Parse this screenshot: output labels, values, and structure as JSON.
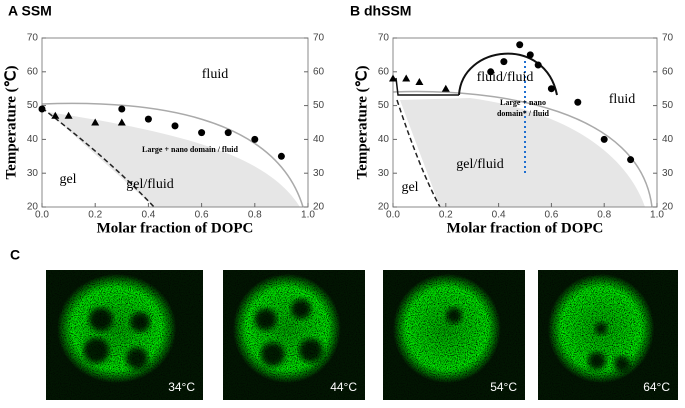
{
  "chart_data": [
    {
      "type": "scatter",
      "title": "A SSM",
      "x_label": "Molar fraction of DOPC",
      "y_label": "Temperature (℃)",
      "xlim": [
        0,
        1
      ],
      "xticks": [
        {
          "value": 0,
          "label": "0.0"
        },
        {
          "value": 0.2,
          "label": "0.2"
        },
        {
          "value": 0.4,
          "label": "0.4"
        },
        {
          "value": 0.6,
          "label": "0.6"
        },
        {
          "value": 0.8,
          "label": "0.8"
        },
        {
          "value": 1,
          "label": "1.0"
        }
      ],
      "ylim": [
        20,
        70
      ],
      "yticks": [
        20,
        30,
        40,
        50,
        60,
        70
      ],
      "y2lim": [
        20,
        70
      ],
      "y2ticks": [
        20,
        30,
        40,
        50,
        60,
        70
      ],
      "series": [
        {
          "marker": "circle",
          "color": "#000000",
          "x": [
            0,
            0.3,
            0.4,
            0.5,
            0.6,
            0.7,
            0.8,
            0.9
          ],
          "values": [
            49,
            49,
            46,
            44,
            42,
            42,
            40,
            35
          ]
        },
        {
          "marker": "triangle",
          "color": "#000000",
          "x": [
            0.05,
            0.1,
            0.2,
            0.3
          ],
          "values": [
            47,
            47,
            45,
            45
          ]
        }
      ],
      "annotations": [
        "fluid",
        "Large + nano domain / fluid",
        "gel",
        "gel/fluid"
      ]
    },
    {
      "type": "scatter",
      "title": "B dhSSM",
      "x_label": "Molar fraction of DOPC",
      "y_label": "Temperature (℃)",
      "xlim": [
        0,
        1
      ],
      "xticks": [
        {
          "value": 0,
          "label": "0.0"
        },
        {
          "value": 0.2,
          "label": "0.2"
        },
        {
          "value": 0.4,
          "label": "0.4"
        },
        {
          "value": 0.6,
          "label": "0.6"
        },
        {
          "value": 0.8,
          "label": "0.8"
        },
        {
          "value": 1,
          "label": "1.0"
        }
      ],
      "ylim": [
        20,
        70
      ],
      "yticks": [
        20,
        30,
        40,
        50,
        60,
        70
      ],
      "y2lim": [
        20,
        70
      ],
      "y2ticks": [
        20,
        30,
        40,
        50,
        60,
        70
      ],
      "series": [
        {
          "marker": "circle",
          "color": "#000000",
          "x": [
            0.37,
            0.42,
            0.48,
            0.52,
            0.55,
            0.6,
            0.7,
            0.8,
            0.9
          ],
          "values": [
            60,
            63,
            68,
            65,
            62,
            55,
            51,
            40,
            34
          ]
        },
        {
          "marker": "triangle",
          "color": "#000000",
          "x": [
            0,
            0.05,
            0.1,
            0.2
          ],
          "values": [
            58,
            58,
            57,
            55
          ]
        }
      ],
      "annotations": [
        "fluid/fluid",
        "Large + nano",
        "domain* / fluid",
        "fluid",
        "gel/fluid",
        "gel"
      ]
    }
  ],
  "panel_c": {
    "label": "C",
    "images": [
      "34°C",
      "44°C",
      "54°C",
      "64°C"
    ]
  }
}
